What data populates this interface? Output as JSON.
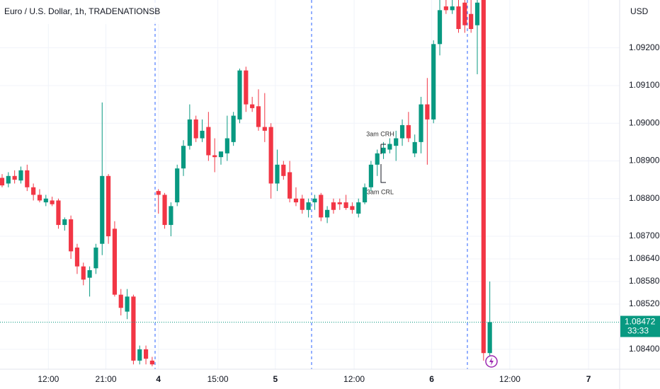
{
  "chart_data": {
    "type": "candlestick",
    "title": "Euro / U.S. Dollar, 1h, TRADENATIONSB",
    "currency": "USD",
    "up_color": "#089981",
    "down_color": "#f23645",
    "open": [
      1.08855,
      1.0884,
      1.0886,
      1.08848,
      1.08875,
      1.0883,
      1.0881,
      1.0879,
      1.08795,
      1.08795,
      1.0873,
      1.08745,
      1.0867,
      1.0862,
      1.0859,
      1.08615,
      1.0868,
      1.0886,
      1.0872,
      1.08545,
      1.085,
      1.0854,
      1.0837,
      1.084,
      1.0837,
      1.0882,
      1.0881,
      1.0873,
      1.0879,
      1.0888,
      1.0894,
      1.0901,
      1.0896,
      1.0899,
      1.08915,
      1.0891,
      1.0892,
      1.0895,
      1.0901,
      1.0914,
      1.0905,
      1.09045,
      1.0899,
      1.0899,
      1.0884,
      1.0889,
      1.0887,
      1.088,
      1.088,
      1.0877,
      1.0879,
      1.0881,
      1.0875,
      1.0879,
      1.0879,
      1.0879,
      1.0878,
      1.0876,
      1.0879,
      1.0883,
      1.0889,
      1.0892,
      1.0893,
      1.0894,
      1.0896,
      1.08995,
      1.0892,
      1.0895,
      1.0905,
      1.0901,
      1.0921,
      1.0931,
      1.093,
      1.0931,
      1.0932,
      1.0929,
      1.0926,
      1.0935,
      1.0839
    ],
    "high": [
      1.08865,
      1.0887,
      1.08875,
      1.08885,
      1.0889,
      1.0884,
      1.08825,
      1.0881,
      1.08805,
      1.088,
      1.0875,
      1.08755,
      1.0868,
      1.0863,
      1.0862,
      1.0868,
      1.09055,
      1.08865,
      1.0874,
      1.0856,
      1.0856,
      1.08545,
      1.0841,
      1.0841,
      1.0838,
      1.08825,
      1.08815,
      1.0879,
      1.0889,
      1.08955,
      1.0905,
      1.0902,
      1.0901,
      1.0903,
      1.0896,
      1.0892,
      1.0902,
      1.0903,
      1.09145,
      1.0915,
      1.0907,
      1.0909,
      1.0908,
      1.09,
      1.0893,
      1.089,
      1.089,
      1.0883,
      1.0881,
      1.088,
      1.0881,
      1.08815,
      1.0878,
      1.088,
      1.088,
      1.0881,
      1.0879,
      1.088,
      1.0884,
      1.089,
      1.0893,
      1.0895,
      1.0896,
      1.0898,
      1.0901,
      1.0903,
      1.0897,
      1.0907,
      1.0912,
      1.0922,
      1.0933,
      1.0934,
      1.0934,
      1.0934,
      1.0934,
      1.0934,
      1.0934,
      1.0936,
      1.0858
    ],
    "low": [
      1.0883,
      1.0883,
      1.0884,
      1.0884,
      1.0882,
      1.08795,
      1.0879,
      1.0878,
      1.0878,
      1.0872,
      1.08715,
      1.0864,
      1.086,
      1.0857,
      1.0854,
      1.086,
      1.0865,
      1.0868,
      1.0854,
      1.0849,
      1.0848,
      1.0836,
      1.0836,
      1.0836,
      1.08355,
      1.0876,
      1.0872,
      1.087,
      1.0878,
      1.0886,
      1.0893,
      1.0895,
      1.0895,
      1.089,
      1.0887,
      1.0889,
      1.089,
      1.0894,
      1.09,
      1.0903,
      1.0903,
      1.0898,
      1.0895,
      1.088,
      1.0882,
      1.0885,
      1.0879,
      1.0878,
      1.0876,
      1.0875,
      1.0877,
      1.0874,
      1.08735,
      1.0876,
      1.0877,
      1.0877,
      1.0876,
      1.0875,
      1.08785,
      1.0882,
      1.0886,
      1.08905,
      1.0892,
      1.089,
      1.0894,
      1.0895,
      1.0891,
      1.0892,
      1.0889,
      1.09,
      1.0918,
      1.0929,
      1.0929,
      1.0924,
      1.0924,
      1.0924,
      1.0913,
      1.0837,
      1.0838
    ],
    "close": [
      1.08835,
      1.0886,
      1.0885,
      1.08875,
      1.0883,
      1.0881,
      1.08795,
      1.088,
      1.08785,
      1.0873,
      1.08745,
      1.0866,
      1.0862,
      1.08585,
      1.0861,
      1.0867,
      1.0886,
      1.087,
      1.08545,
      1.0851,
      1.0854,
      1.0837,
      1.084,
      1.08375,
      1.0836,
      1.0881,
      1.0873,
      1.0878,
      1.0888,
      1.0894,
      1.0901,
      1.0896,
      1.0898,
      1.08915,
      1.0891,
      1.08925,
      1.0896,
      1.0902,
      1.0914,
      1.0905,
      1.0904,
      1.0899,
      1.0898,
      1.0884,
      1.0889,
      1.0886,
      1.088,
      1.0879,
      1.0877,
      1.0879,
      1.088,
      1.0875,
      1.0877,
      1.0877,
      1.08785,
      1.08775,
      1.0877,
      1.0879,
      1.0883,
      1.0889,
      1.0892,
      1.08935,
      1.08945,
      1.0896,
      1.08995,
      1.0896,
      1.0895,
      1.0905,
      1.0901,
      1.0921,
      1.093,
      1.093,
      1.0931,
      1.0925,
      1.0926,
      1.0925,
      1.0932,
      1.0839,
      1.08472
    ],
    "xlim": [
      -0.34,
      98.2
    ],
    "xticks": [
      {
        "value": 7.4,
        "label": "12:00"
      },
      {
        "value": 16.6,
        "label": "21:00"
      },
      {
        "value": 25,
        "label": "4"
      },
      {
        "value": 34.5,
        "label": "15:00"
      },
      {
        "value": 43.7,
        "label": "5"
      },
      {
        "value": 56.3,
        "label": "12:00"
      },
      {
        "value": 68.7,
        "label": "6"
      },
      {
        "value": 81.2,
        "label": "12:00"
      },
      {
        "value": 93.8,
        "label": "7"
      }
    ],
    "ylim": [
      1.08351,
      1.09327
    ],
    "yticks": [
      {
        "value": 1.092,
        "label": "1.09200"
      },
      {
        "value": 1.091,
        "label": "1.09100"
      },
      {
        "value": 1.09,
        "label": "1.09000"
      },
      {
        "value": 1.089,
        "label": "1.08900"
      },
      {
        "value": 1.088,
        "label": "1.08800"
      },
      {
        "value": 1.087,
        "label": "1.08700"
      },
      {
        "value": 1.0864,
        "label": "1.08640"
      },
      {
        "value": 1.0858,
        "label": "1.08580"
      },
      {
        "value": 1.0852,
        "label": "1.08520"
      },
      {
        "value": 1.084,
        "label": "1.08400"
      }
    ],
    "grid": true,
    "last_price": {
      "value": 1.08472,
      "label": "1.08472"
    },
    "countdown": "33:33",
    "annotations": [
      "3am CRH",
      "3am CRL"
    ]
  }
}
